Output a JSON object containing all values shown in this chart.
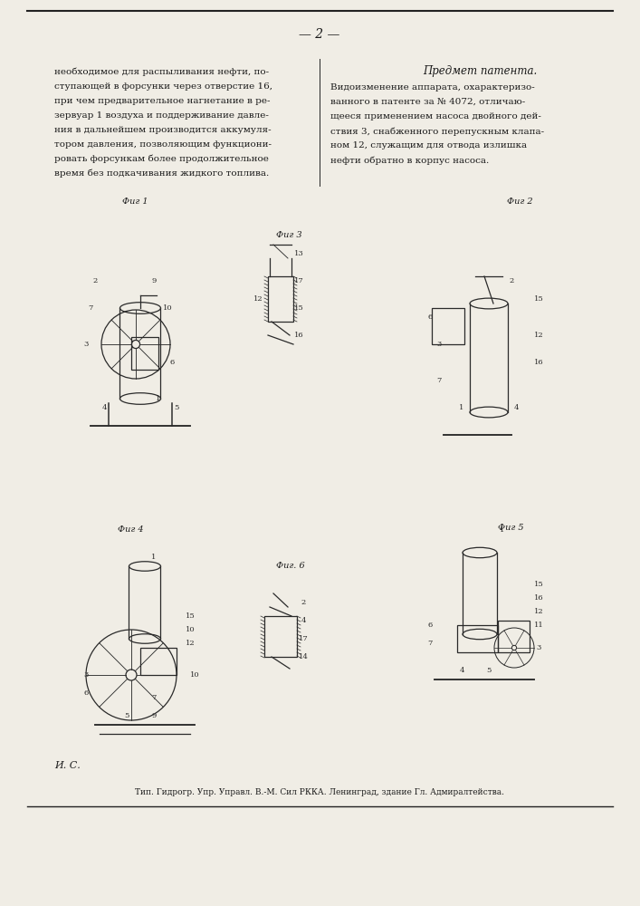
{
  "page_number": "— 2 —",
  "left_column_text": [
    "необходимое для распыливания нефти, по-",
    "ступающей в форсунки через отверстие 16,",
    "при чем предварительное нагнетание в ре-",
    "зервуар 1 воздуха и поддерживание давле-",
    "ния в дальнейшем производится аккумуля-",
    "тором давления, позволяющим функциони-",
    "ровать форсункам более продолжительное",
    "время без подкачивания жидкого топлива."
  ],
  "right_column_title": "Предмет патента.",
  "right_column_text": [
    "Видоизменение аппарата, охарактеризо-",
    "ванного в патенте за № 4072, отличаю-",
    "щееся применением насоса двойного дей-",
    "ствия 3, снабженного перепускным клапа-",
    "ном 12, служащим для отвода излишка",
    "нефти обратно в корпус насоса."
  ],
  "fig1_label": "Фиг 1",
  "fig2_label": "Фиг 2",
  "fig3_label": "Фиг 3",
  "fig4_label": "Фиг 4",
  "fig5_label": "Фиг 5",
  "fig6_label": "Фиг. 6",
  "footer_left": "И. С.",
  "footer_text": "Тип. Гидрогр. Упр. Управл. В.-М. Сил РККА. Ленинград, здание Гл. Адмиралтейства.",
  "bg_color": "#f0ede5",
  "text_color": "#1a1a1a",
  "line_color": "#222222"
}
